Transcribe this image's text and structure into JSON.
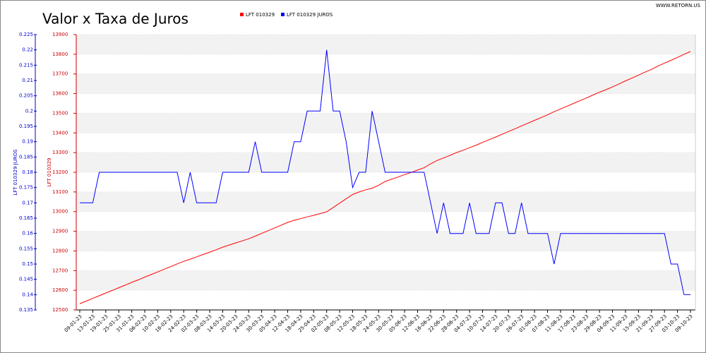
{
  "chart_data": {
    "type": "line",
    "title": "Valor x Taxa de Juros",
    "site": "WWW.RETORN.US",
    "ylabel": "LFT 010329",
    "y2label": "LFT 010329 JUROS",
    "categories": [
      "09-01-23",
      null,
      "13-01-23",
      null,
      "19-01-23",
      null,
      "25-01-23",
      null,
      "31-01-23",
      null,
      "06-02-23",
      null,
      "10-02-23",
      null,
      "16-02-23",
      null,
      "24-02-23",
      null,
      "02-03-23",
      null,
      "08-03-23",
      null,
      "14-03-23",
      null,
      "20-03-23",
      null,
      "24-03-23",
      null,
      "30-03-23",
      null,
      "05-04-23",
      null,
      "12-04-23",
      null,
      "18-04-23",
      null,
      "25-04-23",
      null,
      "02-05-23",
      null,
      "08-05-23",
      null,
      "12-05-23",
      null,
      "18-05-23",
      null,
      "24-05-23",
      null,
      "30-05-23",
      null,
      "05-06-23",
      null,
      "12-06-23",
      null,
      "16-06-23",
      null,
      "22-06-23",
      null,
      "28-06-23",
      null,
      "04-07-23",
      null,
      "10-07-23",
      null,
      "14-07-23",
      null,
      "20-07-23",
      null,
      "26-07-23",
      null,
      "01-08-23",
      null,
      "07-08-23",
      null,
      "11-08-23",
      null,
      "17-08-23",
      null,
      "23-08-23",
      null,
      "29-08-23",
      null,
      "04-09-23",
      null,
      "11-09-23",
      null,
      "15-09-23",
      null,
      "21-09-23",
      null,
      "27-09-23",
      null,
      "03-10-23",
      null,
      "09-10-23"
    ],
    "series": [
      {
        "name": "LFT 010329",
        "color": "#ff0000",
        "axis": "y",
        "values": [
          12532,
          12545,
          12559,
          12572,
          12586,
          12599,
          12613,
          12626,
          12640,
          12653,
          12667,
          12680,
          12693,
          12707,
          12720,
          12734,
          12747,
          12758,
          12770,
          12782,
          12794,
          12806,
          12819,
          12830,
          12841,
          12851,
          12862,
          12875,
          12889,
          12903,
          12917,
          12931,
          12945,
          12956,
          12964,
          12973,
          12981,
          12990,
          12999,
          13021,
          13043,
          13065,
          13087,
          13100,
          13111,
          13119,
          13134,
          13153,
          13165,
          13176,
          13188,
          13199,
          13211,
          13223,
          13243,
          13260,
          13273,
          13286,
          13300,
          13312,
          13325,
          13338,
          13352,
          13366,
          13379,
          13393,
          13407,
          13421,
          13436,
          13450,
          13464,
          13478,
          13492,
          13508,
          13522,
          13536,
          13550,
          13564,
          13578,
          13593,
          13607,
          13620,
          13634,
          13649,
          13665,
          13679,
          13694,
          13709,
          13723,
          13740,
          13755,
          13769,
          13784,
          13800,
          13814
        ]
      },
      {
        "name": "LFT 010329 JUROS",
        "color": "#0000ff",
        "axis": "y2",
        "values": [
          0.17,
          0.17,
          0.17,
          0.18,
          0.18,
          0.18,
          0.18,
          0.18,
          0.18,
          0.18,
          0.18,
          0.18,
          0.18,
          0.18,
          0.18,
          0.18,
          0.17,
          0.18,
          0.17,
          0.17,
          0.17,
          0.17,
          0.18,
          0.18,
          0.18,
          0.18,
          0.18,
          0.19,
          0.18,
          0.18,
          0.18,
          0.18,
          0.18,
          0.19,
          0.19,
          0.2,
          0.2,
          0.2,
          0.22,
          0.2,
          0.2,
          0.19,
          0.175,
          0.18,
          0.18,
          0.2,
          0.19,
          0.18,
          0.18,
          0.18,
          0.18,
          0.18,
          0.18,
          0.18,
          0.17,
          0.16,
          0.17,
          0.16,
          0.16,
          0.16,
          0.17,
          0.16,
          0.16,
          0.16,
          0.17,
          0.17,
          0.16,
          0.16,
          0.17,
          0.16,
          0.16,
          0.16,
          0.16,
          0.15,
          0.16,
          0.16,
          0.16,
          0.16,
          0.16,
          0.16,
          0.16,
          0.16,
          0.16,
          0.16,
          0.16,
          0.16,
          0.16,
          0.16,
          0.16,
          0.16,
          0.16,
          0.15,
          0.15,
          0.14,
          0.14
        ]
      }
    ],
    "ylim": [
      12500,
      13900
    ],
    "yticks": [
      12500,
      12600,
      12700,
      12800,
      12900,
      13000,
      13100,
      13200,
      13300,
      13400,
      13500,
      13600,
      13700,
      13800,
      13900
    ],
    "y2lim": [
      0.135,
      0.225
    ],
    "y2ticks": [
      0.135,
      0.14,
      0.145,
      0.15,
      0.155,
      0.16,
      0.165,
      0.17,
      0.175,
      0.18,
      0.185,
      0.19,
      0.195,
      0.2,
      0.205,
      0.21,
      0.215,
      0.22,
      0.225
    ],
    "grid": true
  }
}
